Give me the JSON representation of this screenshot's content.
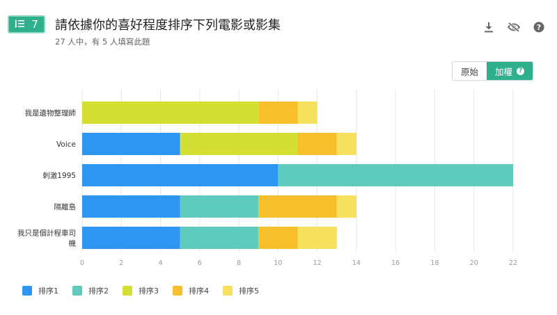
{
  "question": {
    "number": "7",
    "title": "請依據你的喜好程度排序下列電影或影集",
    "subtitle": "27 人中，有 5 人填寫此題"
  },
  "icons": [
    "download-icon",
    "visibility-off-icon",
    "help-icon",
    "ordered-list-icon"
  ],
  "toggle": {
    "original_label": "原始",
    "weighted_label": "加權"
  },
  "colors": {
    "accent": "#2eaf8e",
    "grid": "#e6e6e6"
  },
  "chart_data": {
    "type": "bar",
    "orientation": "horizontal",
    "stacked": true,
    "categories": [
      "我是遺物整理師",
      "Voice",
      "刺激1995",
      "隔離島",
      "我只是個計程車司機"
    ],
    "category_label_lines": [
      [
        "我是遺物整理師"
      ],
      [
        "Voice"
      ],
      [
        "刺激1995"
      ],
      [
        "隔離島"
      ],
      [
        "我只是個計程車司",
        "機"
      ]
    ],
    "series": [
      {
        "name": "排序1",
        "color": "#2e96f0",
        "values": [
          0,
          5,
          10,
          5,
          5
        ]
      },
      {
        "name": "排序2",
        "color": "#5ecbbd",
        "values": [
          0,
          0,
          12,
          4,
          4
        ]
      },
      {
        "name": "排序3",
        "color": "#d4df34",
        "values": [
          9,
          6,
          0,
          0,
          0
        ]
      },
      {
        "name": "排序4",
        "color": "#f8bf2d",
        "values": [
          2,
          2,
          0,
          4,
          2
        ]
      },
      {
        "name": "排序5",
        "color": "#f6e15f",
        "values": [
          1,
          1,
          0,
          1,
          2
        ]
      }
    ],
    "xlim": [
      0,
      22
    ],
    "xticks": [
      0,
      2,
      4,
      6,
      8,
      10,
      12,
      14,
      16,
      18,
      20,
      22
    ],
    "grid": true,
    "legend_position": "bottom-left"
  }
}
